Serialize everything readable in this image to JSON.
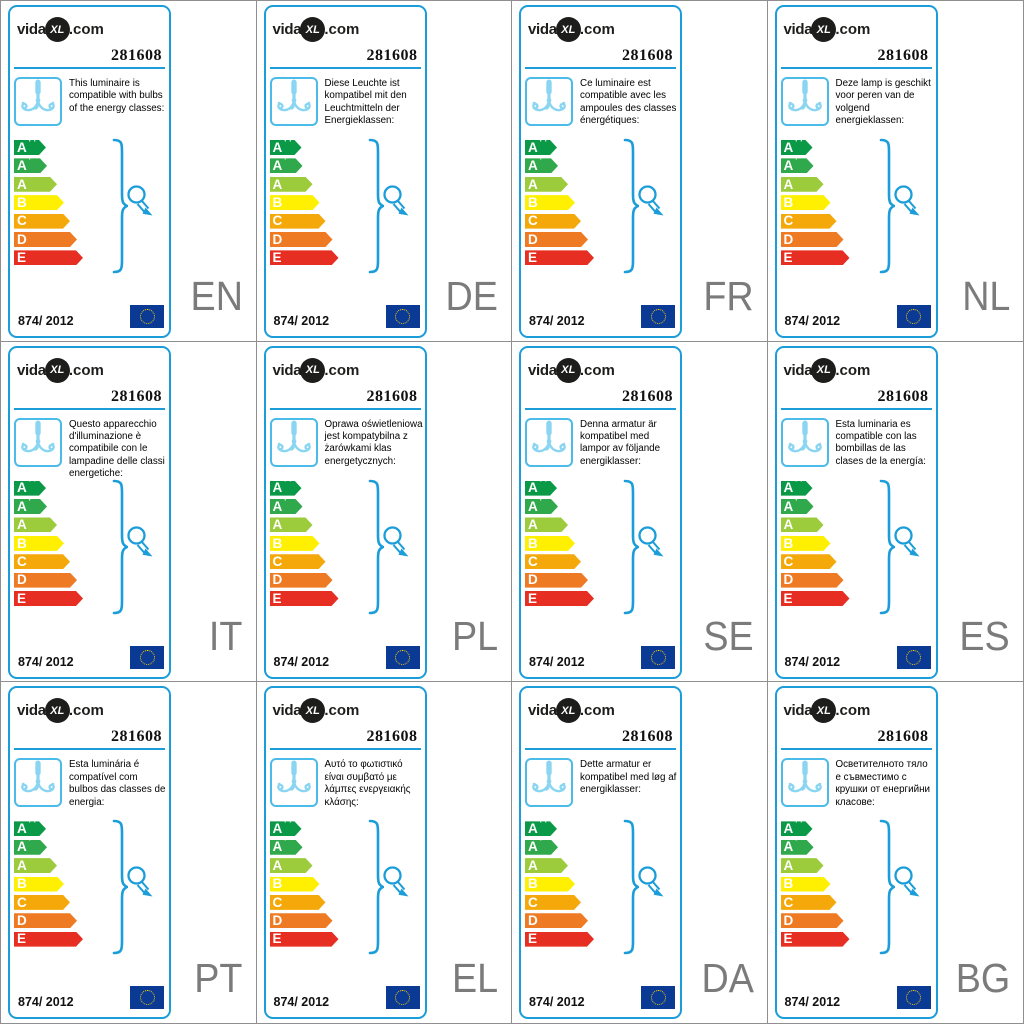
{
  "theme": {
    "accent_blue": "#1b9dd9",
    "icon_blue": "#8ad5f1",
    "icon_box_blue": "#4bbbe9",
    "flag_blue": "#0b3a95",
    "flag_star_yellow": "#ffcc00",
    "language_code_gray": "#7b7b7b",
    "grid_line_gray": "#8f8f8f",
    "logo_black": "#1d1d1b"
  },
  "label_common": {
    "brand": {
      "prefix": "vida",
      "badge": "XL",
      "suffix": ".com"
    },
    "product_number": "281608",
    "regulation": "874/ 2012",
    "icons": [
      "chandelier-icon",
      "bulb-icon",
      "eu-flag-icon",
      "classes-brace"
    ],
    "energy_classes": [
      {
        "label": "A",
        "sup": "++",
        "color": "#0a9a47",
        "width": 32
      },
      {
        "label": "A",
        "sup": "+",
        "color": "#2fa94c",
        "width": 33
      },
      {
        "label": "A",
        "sup": "",
        "color": "#9ccb3b",
        "width": 43
      },
      {
        "label": "B",
        "sup": "",
        "color": "#fef000",
        "width": 50
      },
      {
        "label": "C",
        "sup": "",
        "color": "#f4a80a",
        "width": 56
      },
      {
        "label": "D",
        "sup": "",
        "color": "#ee7b23",
        "width": 63
      },
      {
        "label": "E",
        "sup": "",
        "color": "#e62e22",
        "width": 69
      }
    ]
  },
  "cards": [
    {
      "language_code": "EN",
      "description": "This luminaire is compatible with bulbs of the energy classes:"
    },
    {
      "language_code": "DE",
      "description": "Diese Leuchte ist kompatibel mit den Leuchtmitteln der Energieklassen:"
    },
    {
      "language_code": "FR",
      "description": "Ce luminaire est compatible avec les ampoules des classes énergétiques:"
    },
    {
      "language_code": "NL",
      "description": "Deze lamp is geschikt voor peren van de volgend energieklassen:"
    },
    {
      "language_code": "IT",
      "description": "Questo apparecchio d'illuminazione è compatibile con le lampadine delle classi energetiche:"
    },
    {
      "language_code": "PL",
      "description": "Oprawa oświetleniowa jest kompatybilna z żarówkami klas energetycznych:"
    },
    {
      "language_code": "SE",
      "description": "Denna armatur är kompatibel med lampor av följande energiklasser:"
    },
    {
      "language_code": "ES",
      "description": "Esta luminaria es compatible con las bombillas de las clases de la energía:"
    },
    {
      "language_code": "PT",
      "description": "Esta luminária é compatível com bulbos das classes de energia:"
    },
    {
      "language_code": "EL",
      "description": "Αυτό το φωτιστικό είναι συμβατό με λάμπες ενεργειακής κλάσης:"
    },
    {
      "language_code": "DA",
      "description": "Dette armatur er kompatibel med løg af energiklasser:"
    },
    {
      "language_code": "BG",
      "description": "Осветителното тяло е съвместимо с крушки от енергийни класове:"
    }
  ]
}
